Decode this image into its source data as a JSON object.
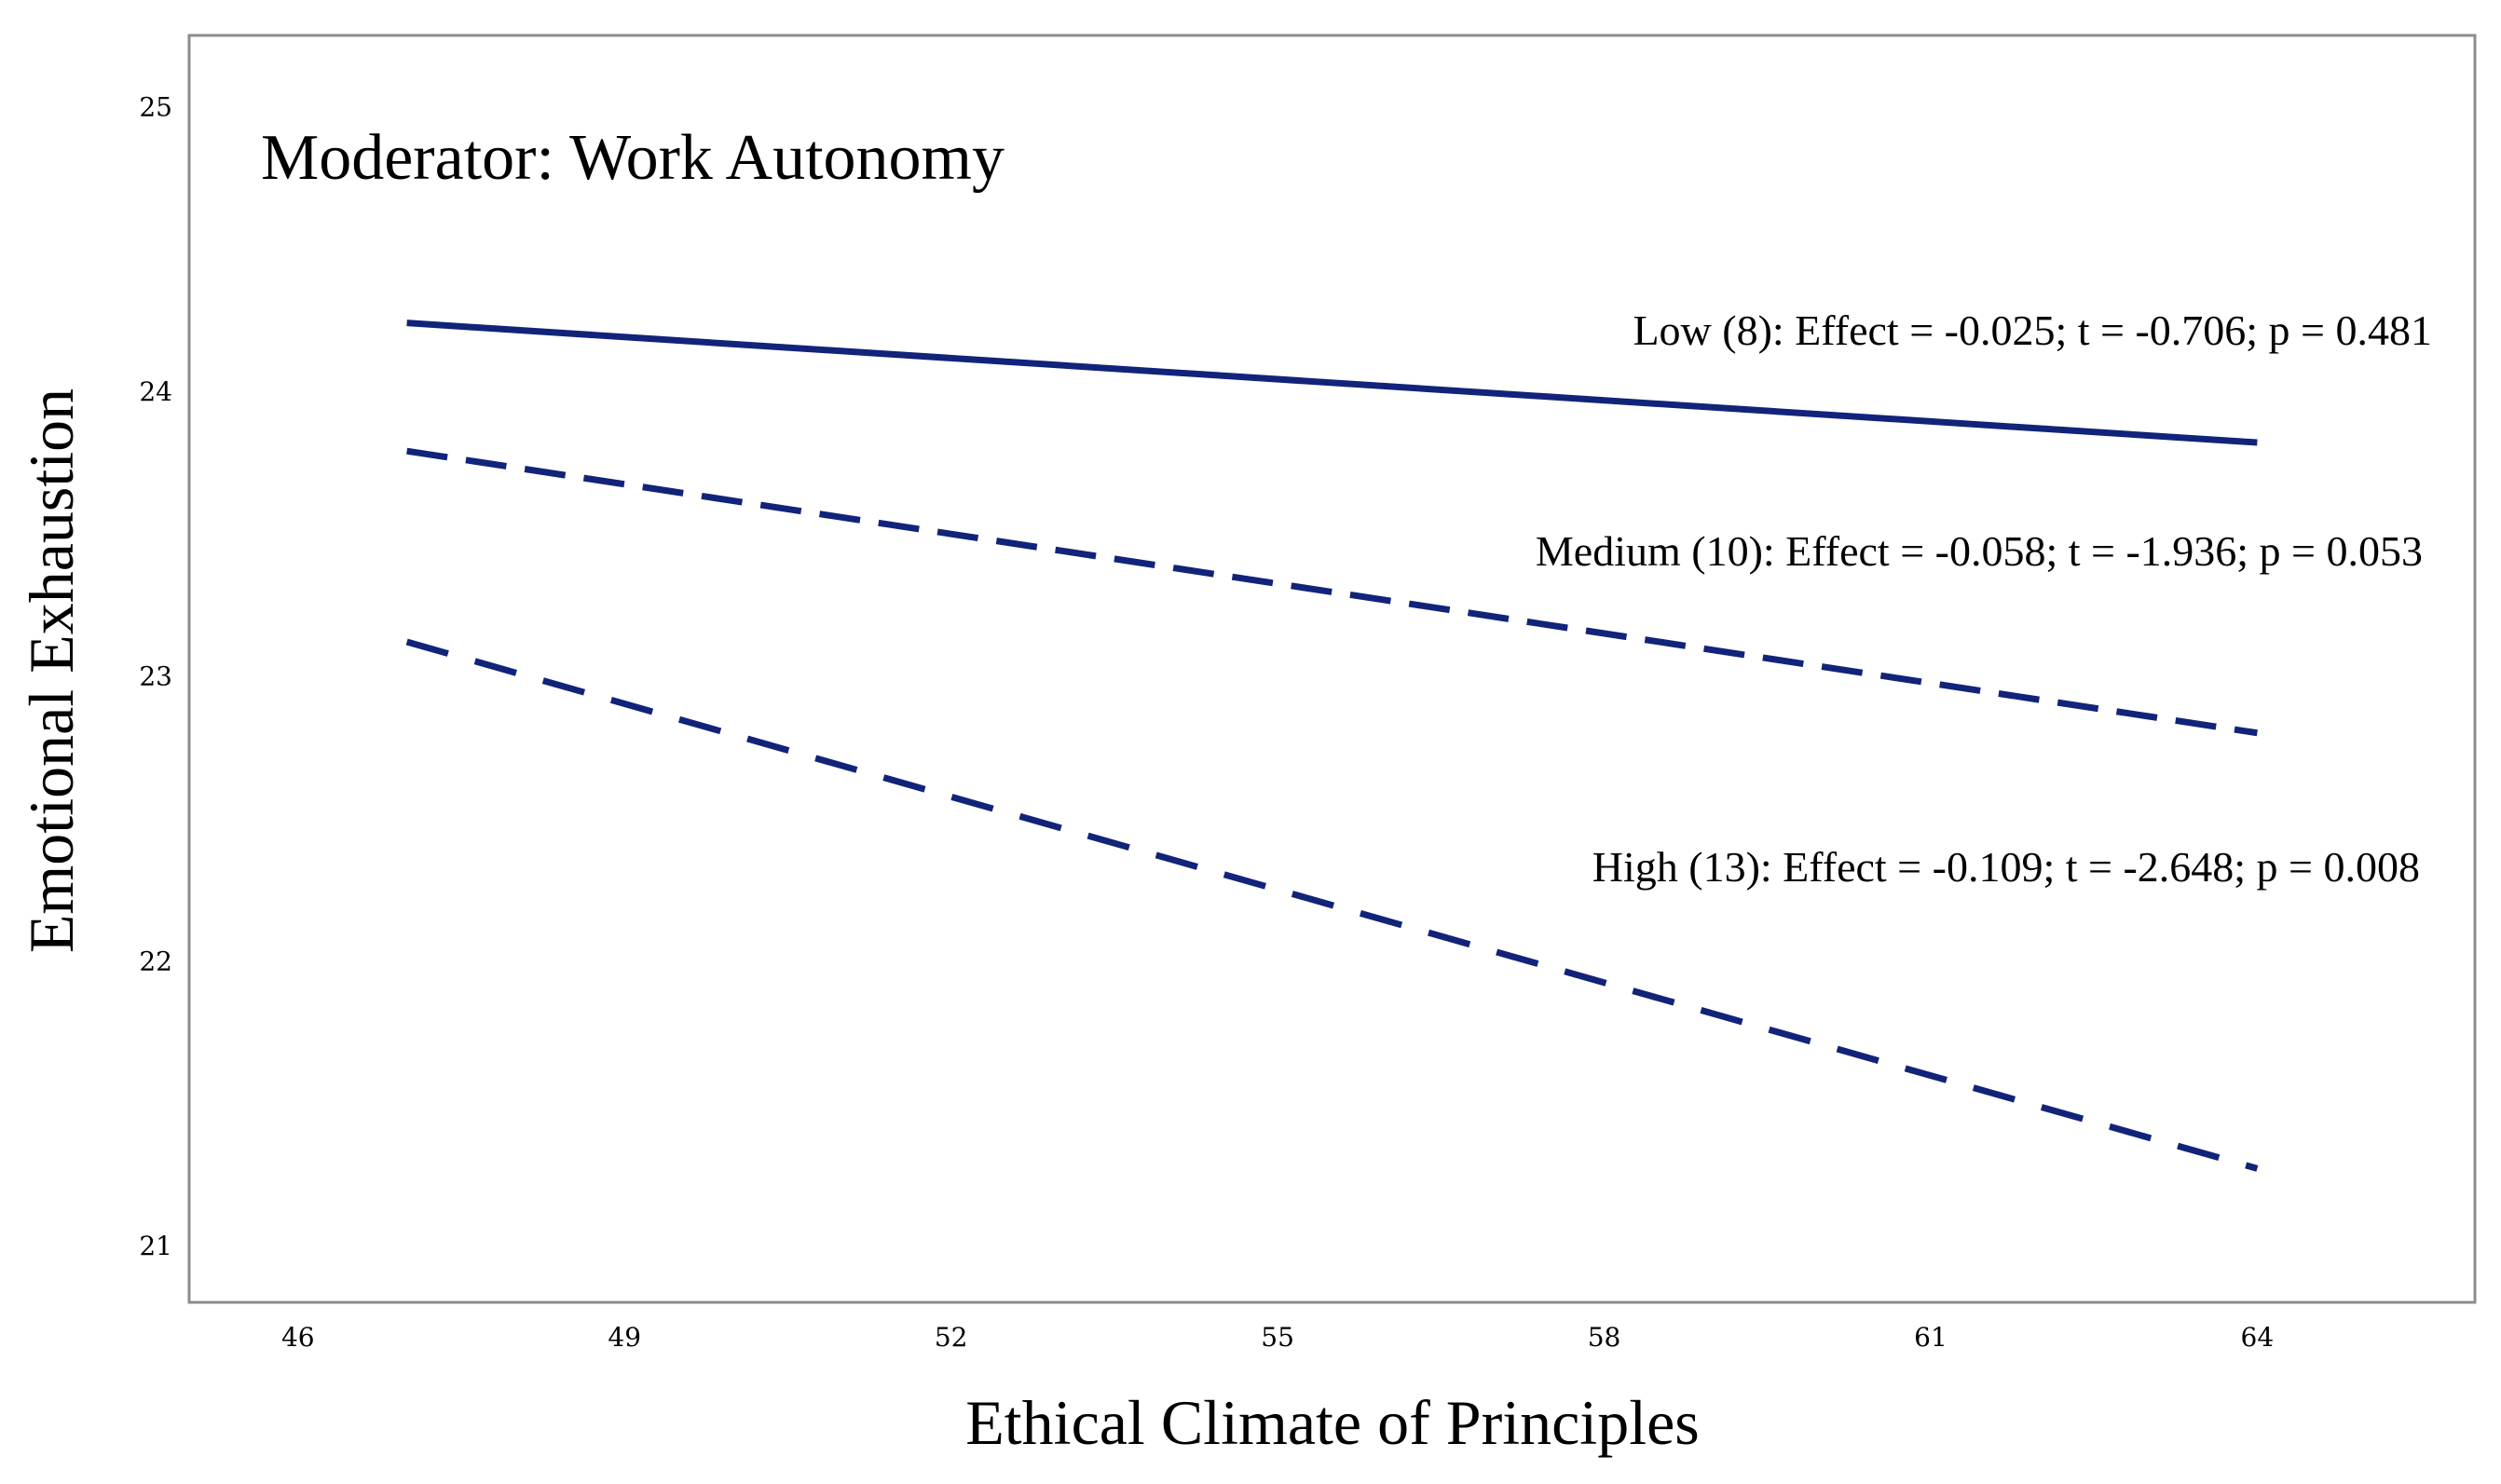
{
  "chart_data": {
    "type": "line",
    "title": "Moderator: Work Autonomy",
    "xlabel": "Ethical Climate of Principles",
    "ylabel": "Emotional Exhaustion",
    "xlim": [
      45,
      66
    ],
    "ylim": [
      20.8,
      25.25
    ],
    "x_ticks": [
      46,
      49,
      52,
      55,
      58,
      61,
      64
    ],
    "y_ticks": [
      21,
      22,
      23,
      24,
      25
    ],
    "grid": false,
    "line_color": "#12237A",
    "frame_color": "#8c8c8c",
    "series": [
      {
        "name": "Low (8)",
        "style": "solid",
        "x": [
          47,
          64
        ],
        "y": [
          24.24,
          23.82
        ],
        "annotation": "Low (8): Effect = -0.025; t = -0.706; p = 0.481"
      },
      {
        "name": "Medium (10)",
        "style": "dashed",
        "x": [
          47,
          64
        ],
        "y": [
          23.79,
          22.8
        ],
        "annotation": "Medium (10): Effect = -0.058; t = -1.936; p = 0.053"
      },
      {
        "name": "High (13)",
        "style": "dashed-long",
        "x": [
          47,
          64
        ],
        "y": [
          23.12,
          21.27
        ],
        "annotation": "High (13): Effect = -0.109; t = -2.648; p = 0.008"
      }
    ]
  }
}
